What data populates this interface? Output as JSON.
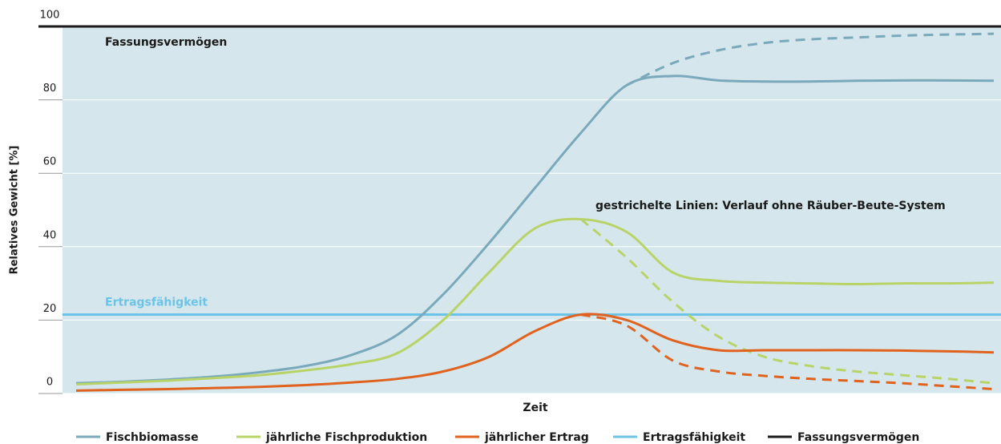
{
  "chart_data": {
    "type": "line",
    "y_label": "Relatives Gewicht [%]",
    "x_label": "Zeit",
    "annotation": "gestrichelte Linien: Verlauf ohne Räuber-Beute-System",
    "categories": [
      null,
      null,
      null,
      null,
      null,
      null,
      null,
      null,
      null,
      null,
      null,
      null,
      null,
      null,
      null,
      null,
      null,
      null,
      null,
      null,
      null
    ],
    "ylim": [
      0,
      100
    ],
    "yticks": [
      0,
      20,
      40,
      60,
      80,
      100
    ],
    "grid": true,
    "series": [
      {
        "name": "Fischbiomasse",
        "color": "#7aa9bb",
        "values": [
          2.8,
          3.2,
          3.8,
          4.6,
          5.8,
          7.5,
          10.5,
          16,
          27,
          41,
          56,
          71,
          84,
          86.5,
          85.3,
          85,
          85,
          85.2,
          85.3,
          85.3,
          85.2
        ],
        "dashed_values": [
          null,
          null,
          null,
          null,
          null,
          null,
          null,
          null,
          null,
          null,
          null,
          null,
          84,
          90,
          93.5,
          95.5,
          96.5,
          97,
          97.5,
          97.8,
          98
        ]
      },
      {
        "name": "jährliche Fischproduktion",
        "color": "#b8d468",
        "values": [
          2.5,
          3,
          3.5,
          4.2,
          5,
          6.3,
          8,
          11,
          20,
          33,
          45,
          47.5,
          44,
          33,
          30.7,
          30.2,
          30,
          29.8,
          30,
          30,
          30.2
        ],
        "dashed_values": [
          null,
          null,
          null,
          null,
          null,
          null,
          null,
          null,
          null,
          null,
          null,
          47.5,
          37,
          25,
          15.5,
          10,
          7.5,
          6,
          5,
          4,
          2.8
        ]
      },
      {
        "name": "jährlicher Ertrag",
        "color": "#e0621e",
        "values": [
          0.8,
          1,
          1.2,
          1.5,
          1.8,
          2.3,
          3,
          4,
          6,
          10,
          17,
          21.5,
          20,
          14.5,
          11.8,
          11.8,
          11.8,
          11.8,
          11.7,
          11.5,
          11.2
        ],
        "dashed_values": [
          null,
          null,
          null,
          null,
          null,
          null,
          null,
          null,
          null,
          null,
          null,
          21.5,
          18.5,
          9,
          6,
          4.8,
          4,
          3.4,
          2.8,
          2,
          1.2
        ]
      }
    ],
    "hlines": [
      {
        "name": "Ertragsfähigkeit",
        "color": "#6cc3e8",
        "value": 21.5
      },
      {
        "name": "Fassungsvermögen",
        "color": "#1a1a1a",
        "value": 100
      }
    ]
  }
}
